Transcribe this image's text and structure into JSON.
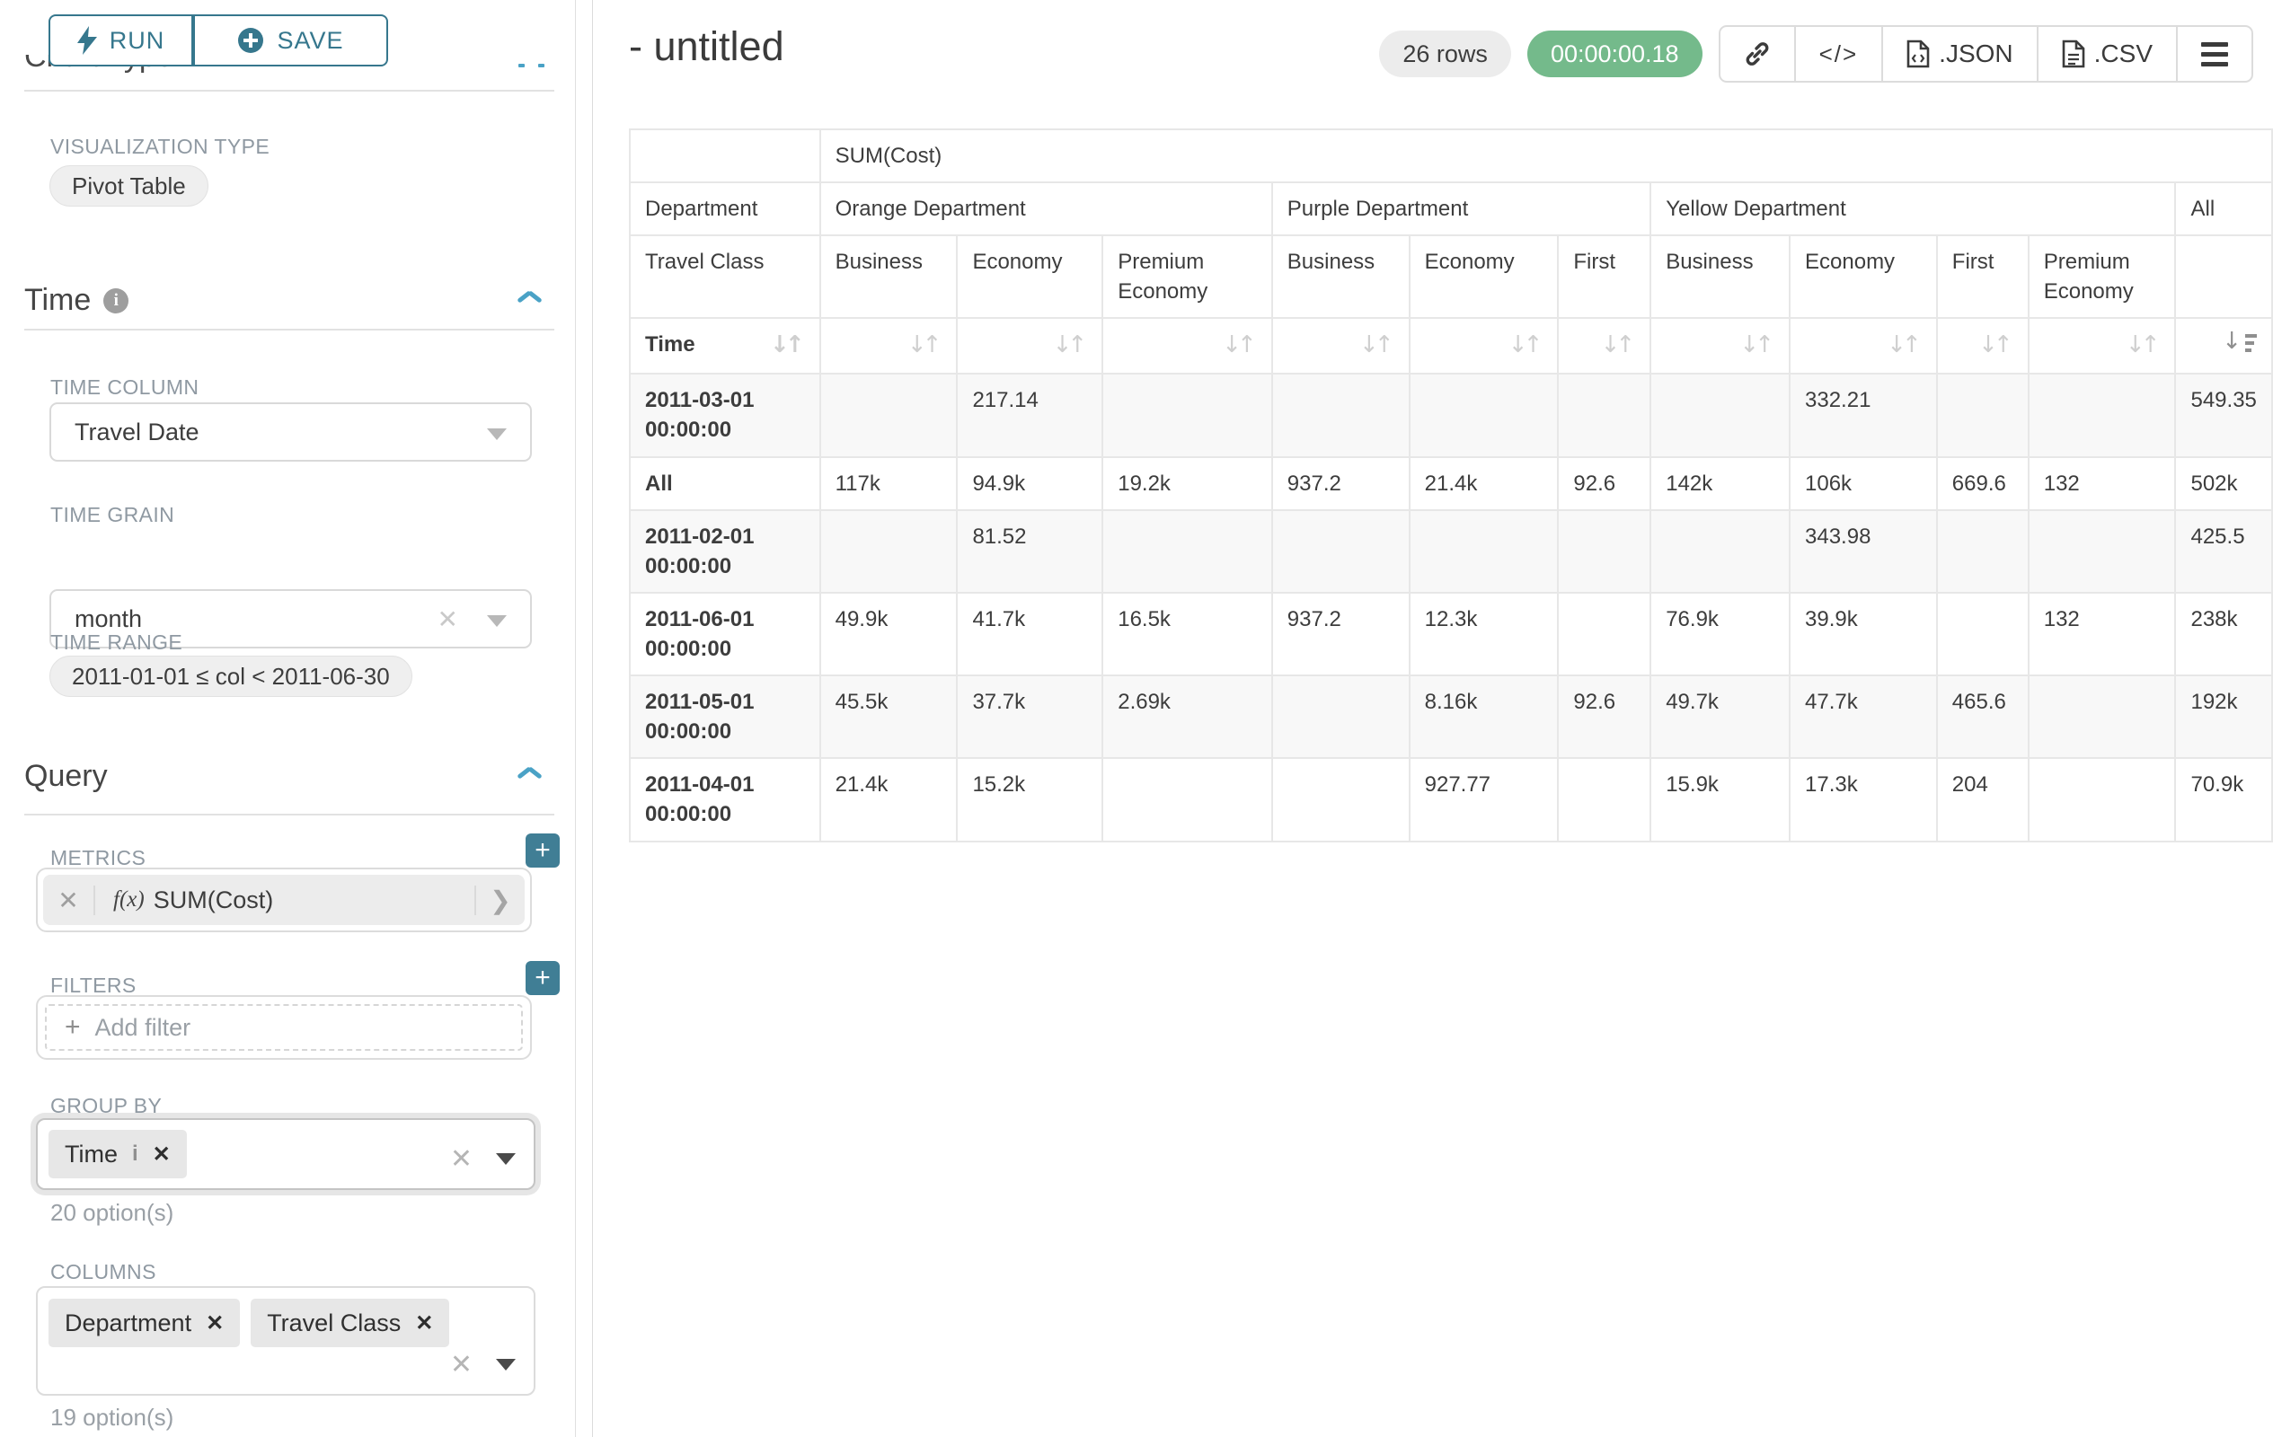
{
  "sidebar": {
    "run": "RUN",
    "save": "SAVE",
    "section_chart_type": "Chart Type",
    "viz_label": "VISUALIZATION TYPE",
    "viz_value": "Pivot Table",
    "time_title": "Time",
    "time_column_label": "TIME COLUMN",
    "time_column_value": "Travel Date",
    "time_grain_label": "TIME GRAIN",
    "time_grain_value": "month",
    "time_range_label": "TIME RANGE",
    "time_range_value": "2011-01-01 ≤ col < 2011-06-30",
    "query_title": "Query",
    "metrics_label": "METRICS",
    "metric_fx": "f(x)",
    "metric_value": "SUM(Cost)",
    "filters_label": "FILTERS",
    "add_filter": "Add filter",
    "group_by_label": "GROUP BY",
    "group_by_tag": "Time",
    "group_by_options": "20 option(s)",
    "columns_label": "COLUMNS",
    "columns_tags": [
      "Department",
      "Travel Class"
    ],
    "columns_options": "19 option(s)"
  },
  "header": {
    "title": "- untitled",
    "row_count": "26 rows",
    "timer": "00:00:00.18",
    "export_json": ".JSON",
    "export_csv": ".CSV"
  },
  "pivot": {
    "metric_label": "SUM(Cost)",
    "dim_row_label": "Department",
    "subdim_row_label": "Travel Class",
    "sort_row_label": "Time",
    "groups": [
      {
        "label": "Orange Department",
        "children": [
          "Business",
          "Economy",
          "Premium Economy"
        ]
      },
      {
        "label": "Purple Department",
        "children": [
          "Business",
          "Economy",
          "First"
        ]
      },
      {
        "label": "Yellow Department",
        "children": [
          "Business",
          "Economy",
          "First",
          "Premium Economy"
        ]
      },
      {
        "label": "All",
        "children": [
          ""
        ]
      }
    ],
    "rows": [
      {
        "label": "2011-03-01 00:00:00",
        "values": [
          "",
          "217.14",
          "",
          "",
          "",
          "",
          "",
          "332.21",
          "",
          "",
          "549.35"
        ]
      },
      {
        "label": "All",
        "values": [
          "117k",
          "94.9k",
          "19.2k",
          "937.2",
          "21.4k",
          "92.6",
          "142k",
          "106k",
          "669.6",
          "132",
          "502k"
        ]
      },
      {
        "label": "2011-02-01 00:00:00",
        "values": [
          "",
          "81.52",
          "",
          "",
          "",
          "",
          "",
          "343.98",
          "",
          "",
          "425.5"
        ]
      },
      {
        "label": "2011-06-01 00:00:00",
        "values": [
          "49.9k",
          "41.7k",
          "16.5k",
          "937.2",
          "12.3k",
          "",
          "76.9k",
          "39.9k",
          "",
          "132",
          "238k"
        ]
      },
      {
        "label": "2011-05-01 00:00:00",
        "values": [
          "45.5k",
          "37.7k",
          "2.69k",
          "",
          "8.16k",
          "92.6",
          "49.7k",
          "47.7k",
          "465.6",
          "",
          "192k"
        ]
      },
      {
        "label": "2011-04-01 00:00:00",
        "values": [
          "21.4k",
          "15.2k",
          "",
          "",
          "927.77",
          "",
          "15.9k",
          "17.3k",
          "204",
          "",
          "70.9k"
        ]
      }
    ]
  }
}
